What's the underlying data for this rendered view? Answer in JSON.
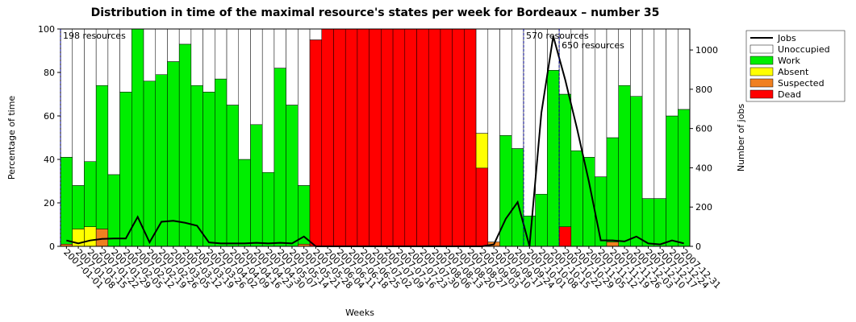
{
  "chart_data": {
    "type": "bar",
    "stacked": true,
    "title": "Distribution in time of the maximal resource's states per week for Bordeaux – number 35",
    "x_label": "Weeks",
    "y_label": "Percentage of time",
    "y2_label": "Number of jobs",
    "categories": [
      "2007-01-01",
      "2007-01-08",
      "2007-01-15",
      "2007-01-22",
      "2007-01-29",
      "2007-02-05",
      "2007-02-12",
      "2007-02-19",
      "2007-02-26",
      "2007-03-05",
      "2007-03-12",
      "2007-03-19",
      "2007-03-26",
      "2007-04-02",
      "2007-04-09",
      "2007-04-16",
      "2007-04-23",
      "2007-04-30",
      "2007-05-07",
      "2007-05-14",
      "2007-05-21",
      "2007-05-28",
      "2007-06-04",
      "2007-06-11",
      "2007-06-18",
      "2007-06-25",
      "2007-07-02",
      "2007-07-09",
      "2007-07-16",
      "2007-07-23",
      "2007-07-30",
      "2007-08-06",
      "2007-08-13",
      "2007-08-20",
      "2007-08-27",
      "2007-09-03",
      "2007-09-10",
      "2007-09-17",
      "2007-09-24",
      "2007-10-01",
      "2007-10-08",
      "2007-10-15",
      "2007-10-22",
      "2007-10-29",
      "2007-11-05",
      "2007-11-12",
      "2007-11-19",
      "2007-11-26",
      "2007-12-03",
      "2007-12-10",
      "2007-12-17",
      "2007-12-24",
      "2007-12-31"
    ],
    "series": [
      {
        "name": "Jobs",
        "type": "line",
        "axis": "y2",
        "color": "#000000",
        "values": [
          30,
          15,
          30,
          38,
          40,
          40,
          150,
          20,
          125,
          130,
          120,
          105,
          20,
          15,
          15,
          15,
          18,
          15,
          18,
          15,
          50,
          0,
          0,
          0,
          0,
          0,
          0,
          0,
          0,
          0,
          0,
          0,
          0,
          0,
          0,
          0,
          10,
          140,
          225,
          0,
          680,
          1070,
          850,
          600,
          330,
          30,
          30,
          25,
          50,
          15,
          10,
          30,
          15
        ]
      },
      {
        "name": "Unoccupied",
        "color": "#ffffff",
        "values": [
          59,
          72,
          61,
          26,
          67,
          29,
          0,
          24,
          21,
          15,
          7,
          26,
          29,
          23,
          35,
          60,
          44,
          66,
          18,
          35,
          72,
          5,
          0,
          0,
          0,
          0,
          0,
          0,
          0,
          0,
          0,
          0,
          0,
          0,
          0,
          48,
          98,
          49,
          55,
          86,
          76,
          19,
          30,
          56,
          59,
          68,
          50,
          26,
          31,
          78,
          78,
          40,
          37
        ]
      },
      {
        "name": "Work",
        "color": "#00ee00",
        "values": [
          40,
          20,
          30,
          66,
          33,
          71,
          100,
          76,
          79,
          85,
          93,
          74,
          71,
          77,
          65,
          40,
          56,
          34,
          82,
          65,
          27,
          0,
          0,
          0,
          0,
          0,
          0,
          0,
          0,
          0,
          0,
          0,
          0,
          0,
          0,
          0,
          0,
          51,
          45,
          14,
          24,
          81,
          61,
          44,
          41,
          32,
          48,
          74,
          69,
          22,
          22,
          60,
          63
        ]
      },
      {
        "name": "Absent",
        "color": "#ffff00",
        "values": [
          0,
          8,
          9,
          0,
          0,
          0,
          0,
          0,
          0,
          0,
          0,
          0,
          0,
          0,
          0,
          0,
          0,
          0,
          0,
          0,
          0,
          0,
          0,
          0,
          0,
          0,
          0,
          0,
          0,
          0,
          0,
          0,
          0,
          0,
          0,
          16,
          0,
          0,
          0,
          0,
          0,
          0,
          0,
          0,
          0,
          0,
          0,
          0,
          0,
          0,
          0,
          0,
          0
        ]
      },
      {
        "name": "Suspected",
        "color": "#f08020",
        "values": [
          1,
          0,
          0,
          8,
          0,
          0,
          0,
          0,
          0,
          0,
          0,
          0,
          0,
          0,
          0,
          0,
          0,
          0,
          0,
          0,
          1,
          0,
          0,
          0,
          0,
          0,
          0,
          0,
          0,
          0,
          0,
          0,
          0,
          0,
          0,
          0,
          2,
          0,
          0,
          0,
          0,
          0,
          0,
          0,
          0,
          0,
          2,
          0,
          0,
          0,
          0,
          0,
          0
        ]
      },
      {
        "name": "Dead",
        "color": "#ff0000",
        "values": [
          0,
          0,
          0,
          0,
          0,
          0,
          0,
          0,
          0,
          0,
          0,
          0,
          0,
          0,
          0,
          0,
          0,
          0,
          0,
          0,
          0,
          95,
          100,
          100,
          100,
          100,
          100,
          100,
          100,
          100,
          100,
          100,
          100,
          100,
          100,
          36,
          0,
          0,
          0,
          0,
          0,
          0,
          9,
          0,
          0,
          0,
          0,
          0,
          0,
          0,
          0,
          0,
          0
        ]
      }
    ],
    "annotations": [
      {
        "text": "198 resources",
        "category": "2007-01-01"
      },
      {
        "text": "570 resources",
        "category": "2007-10-01"
      },
      {
        "text": "650 resources",
        "category": "2007-10-22"
      }
    ],
    "annotation_color": "#00008b",
    "ylim": [
      0,
      100
    ],
    "yticks": [
      0,
      20,
      40,
      60,
      80,
      100
    ],
    "y2lim": [
      0,
      1107
    ],
    "y2ticks": [
      0,
      200,
      400,
      600,
      800,
      1000
    ],
    "grid": false,
    "legend": "outside-right"
  }
}
